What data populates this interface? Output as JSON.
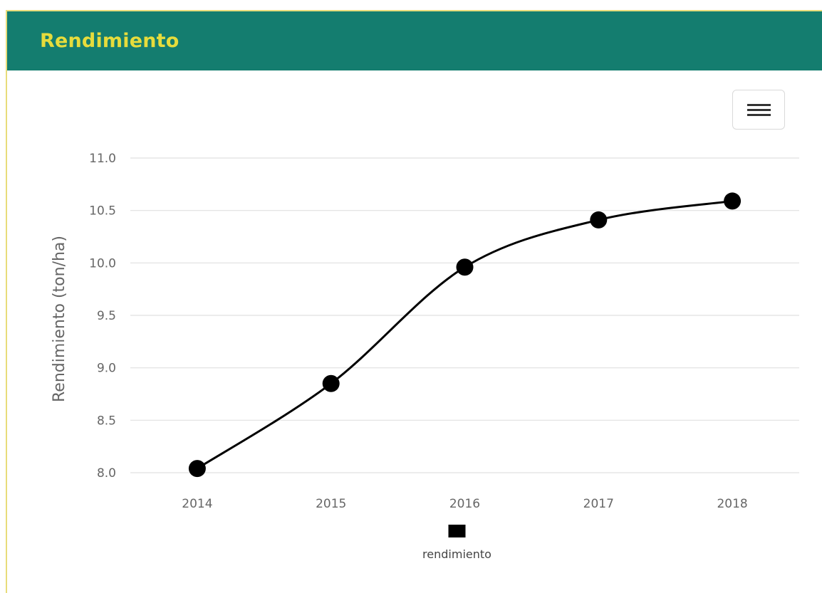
{
  "header": {
    "title": "Rendimiento",
    "bg_color": "#147d6f",
    "title_color": "#e6dc3c"
  },
  "toolbar": {
    "menu_icon": "hamburger-menu-icon"
  },
  "chart_data": {
    "type": "line",
    "title": "",
    "xlabel": "",
    "ylabel": "Rendimiento (ton/ha)",
    "categories": [
      "2014",
      "2015",
      "2016",
      "2017",
      "2018"
    ],
    "series": [
      {
        "name": "rendimiento",
        "color": "#000000",
        "values": [
          8.04,
          8.85,
          9.96,
          10.41,
          10.59
        ]
      }
    ],
    "ylim": [
      8.0,
      11.0
    ],
    "yticks": [
      "8.0",
      "8.5",
      "9.0",
      "9.5",
      "10.0",
      "10.5",
      "11.0"
    ],
    "grid": true,
    "smooth": true,
    "legend": "bottom-center"
  }
}
